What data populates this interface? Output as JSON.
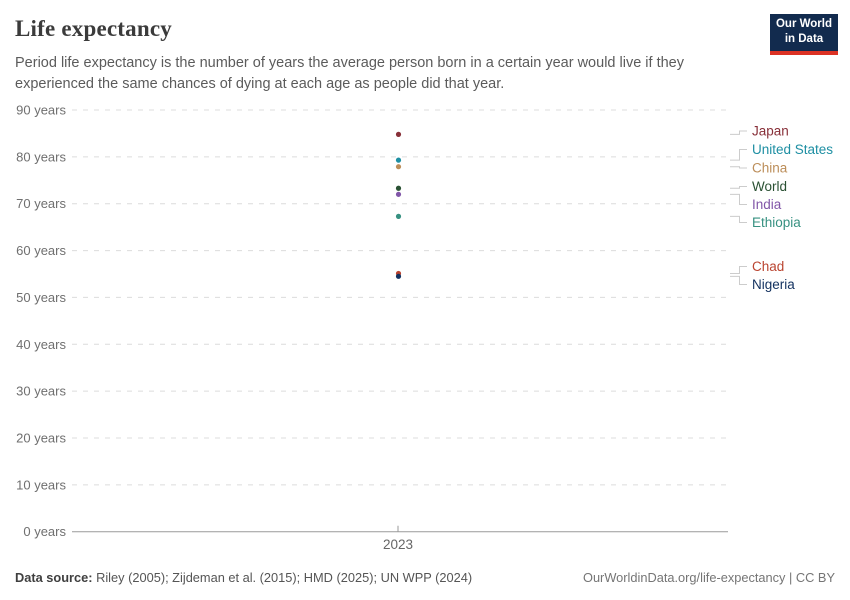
{
  "header": {
    "title": "Life expectancy",
    "subtitle": "Period life expectancy is the number of years the average person born in a certain year would live if they experienced the same chances of dying at each age as people did that year.",
    "logo": {
      "line1": "Our World",
      "line2": "in Data",
      "background_color": "#122B4E",
      "accent_color": "#DC3224"
    }
  },
  "chart_data": {
    "type": "scatter",
    "title": "Life expectancy",
    "xlabel": "",
    "ylabel": "",
    "x": [
      2023
    ],
    "x_tick_labels": [
      "2023"
    ],
    "ylim": [
      0,
      90
    ],
    "y_tick_suffix": " years",
    "y_ticks": [
      {
        "value": 0,
        "label": "0 years"
      },
      {
        "value": 10,
        "label": "10 years"
      },
      {
        "value": 20,
        "label": "20 years"
      },
      {
        "value": 30,
        "label": "30 years"
      },
      {
        "value": 40,
        "label": "40 years"
      },
      {
        "value": 50,
        "label": "50 years"
      },
      {
        "value": 60,
        "label": "60 years"
      },
      {
        "value": 70,
        "label": "70 years"
      },
      {
        "value": 80,
        "label": "80 years"
      },
      {
        "value": 90,
        "label": "90 years"
      }
    ],
    "grid": true,
    "legend_position": "right",
    "series": [
      {
        "name": "Japan",
        "year": 2023,
        "value": 84.8,
        "color": "#883039"
      },
      {
        "name": "United States",
        "year": 2023,
        "value": 79.3,
        "color": "#1E8FA3"
      },
      {
        "name": "China",
        "year": 2023,
        "value": 77.9,
        "color": "#BC8E5A"
      },
      {
        "name": "World",
        "year": 2023,
        "value": 73.3,
        "color": "#2A5133"
      },
      {
        "name": "India",
        "year": 2023,
        "value": 72.0,
        "color": "#8156A8"
      },
      {
        "name": "Ethiopia",
        "year": 2023,
        "value": 67.3,
        "color": "#379181"
      },
      {
        "name": "Chad",
        "year": 2023,
        "value": 55.1,
        "color": "#BA4430"
      },
      {
        "name": "Nigeria",
        "year": 2023,
        "value": 54.5,
        "color": "#12315F"
      }
    ]
  },
  "footer": {
    "source_label": "Data source:",
    "source_text": " Riley (2005); Zijdeman et al. (2015); HMD (2025); UN WPP (2024)",
    "link": "OurWorldinData.org/life-expectancy | CC BY"
  }
}
